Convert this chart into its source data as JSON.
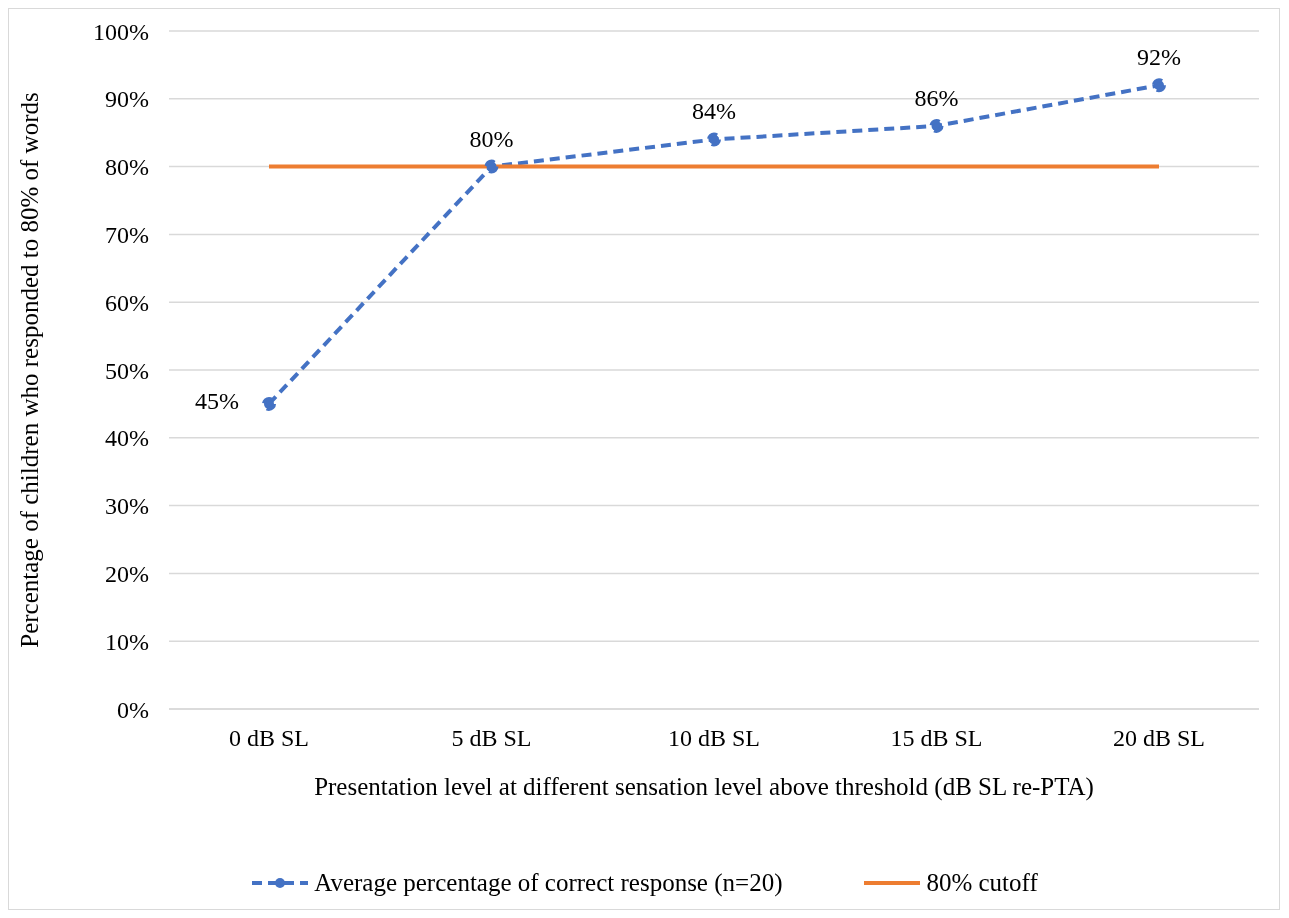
{
  "chart_data": {
    "type": "line",
    "xlabel": "Presentation level at different sensation level above threshold (dB SL re-PTA)",
    "ylabel": "Percentage of children who responded to 80% of words",
    "categories": [
      "0 dB SL",
      "5 dB SL",
      "10 dB SL",
      "15 dB SL",
      "20 dB SL"
    ],
    "series": [
      {
        "name": "Average percentage of correct response (n=20)",
        "color": "#4472c4",
        "values": [
          45,
          80,
          84,
          86,
          92
        ],
        "value_labels": [
          "45%",
          "80%",
          "84%",
          "86%",
          "92%"
        ],
        "marker": "circle",
        "line_style": "dashed"
      },
      {
        "name": "80% cutoff",
        "color": "#ed7d31",
        "values": [
          80,
          80,
          80,
          80,
          80
        ],
        "marker": "none",
        "line_style": "solid"
      }
    ],
    "ylim": [
      0,
      100
    ],
    "yticks": [
      {
        "value": 0,
        "label": "0%"
      },
      {
        "value": 10,
        "label": "10%"
      },
      {
        "value": 20,
        "label": "20%"
      },
      {
        "value": 30,
        "label": "30%"
      },
      {
        "value": 40,
        "label": "40%"
      },
      {
        "value": 50,
        "label": "50%"
      },
      {
        "value": 60,
        "label": "60%"
      },
      {
        "value": 70,
        "label": "70%"
      },
      {
        "value": 80,
        "label": "80%"
      },
      {
        "value": 90,
        "label": "90%"
      },
      {
        "value": 100,
        "label": "100%"
      }
    ],
    "grid": "y",
    "legend": "bottom"
  }
}
